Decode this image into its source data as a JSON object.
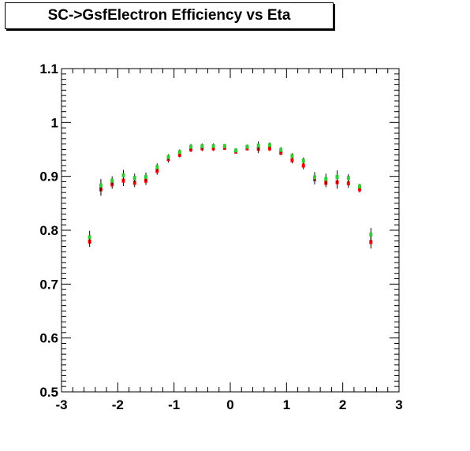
{
  "chart_data": {
    "type": "scatter",
    "title": "SC->GsfElectron Efficiency vs Eta",
    "xlabel": "",
    "ylabel": "",
    "xlim": [
      -3,
      3
    ],
    "ylim": [
      0.5,
      1.1
    ],
    "x_ticks": [
      -3,
      -2,
      -1,
      0,
      1,
      2,
      3
    ],
    "y_ticks": [
      0.5,
      0.6,
      0.7,
      0.8,
      0.9,
      1,
      1.1
    ],
    "x_tick_labels": [
      "-3",
      "-2",
      "-1",
      "0",
      "1",
      "2",
      "3"
    ],
    "y_tick_labels": [
      "0.5",
      "0.6",
      "0.7",
      "0.8",
      "0.9",
      "1",
      "1.1"
    ],
    "grid": false,
    "legend": "none",
    "series": [
      {
        "color": "#ff0000",
        "x": [
          -2.5,
          -2.3,
          -2.1,
          -1.9,
          -1.7,
          -1.5,
          -1.3,
          -1.1,
          -0.9,
          -0.7,
          -0.5,
          -0.3,
          -0.1,
          0.1,
          0.3,
          0.5,
          0.7,
          0.9,
          1.1,
          1.3,
          1.5,
          1.7,
          1.9,
          2.1,
          2.3,
          2.5
        ],
        "y": [
          0.779,
          0.876,
          0.885,
          0.892,
          0.888,
          0.892,
          0.91,
          0.932,
          0.94,
          0.95,
          0.952,
          0.952,
          0.953,
          0.946,
          0.952,
          0.951,
          0.952,
          0.944,
          0.93,
          0.92,
          0.895,
          0.888,
          0.889,
          0.887,
          0.876,
          0.778
        ],
        "err": [
          0.01,
          0.012,
          0.008,
          0.01,
          0.008,
          0.008,
          0.007,
          0.006,
          0.005,
          0.005,
          0.005,
          0.005,
          0.004,
          0.004,
          0.004,
          0.008,
          0.005,
          0.005,
          0.006,
          0.007,
          0.01,
          0.008,
          0.012,
          0.008,
          0.006,
          0.012
        ]
      },
      {
        "color": "#33cc33",
        "x": [
          -2.5,
          -2.3,
          -2.1,
          -1.9,
          -1.7,
          -1.5,
          -1.3,
          -1.1,
          -0.9,
          -0.7,
          -0.5,
          -0.3,
          -0.1,
          0.1,
          0.3,
          0.5,
          0.7,
          0.9,
          1.1,
          1.3,
          1.5,
          1.7,
          1.9,
          2.1,
          2.3,
          2.5
        ],
        "y": [
          0.787,
          0.883,
          0.892,
          0.902,
          0.897,
          0.899,
          0.917,
          0.936,
          0.945,
          0.955,
          0.956,
          0.956,
          0.956,
          0.948,
          0.955,
          0.957,
          0.958,
          0.949,
          0.938,
          0.929,
          0.898,
          0.895,
          0.899,
          0.897,
          0.881,
          0.792
        ],
        "err": [
          0.012,
          0.012,
          0.008,
          0.01,
          0.008,
          0.008,
          0.007,
          0.005,
          0.005,
          0.005,
          0.005,
          0.005,
          0.004,
          0.004,
          0.004,
          0.008,
          0.005,
          0.005,
          0.005,
          0.006,
          0.01,
          0.01,
          0.012,
          0.007,
          0.005,
          0.012
        ]
      }
    ]
  }
}
